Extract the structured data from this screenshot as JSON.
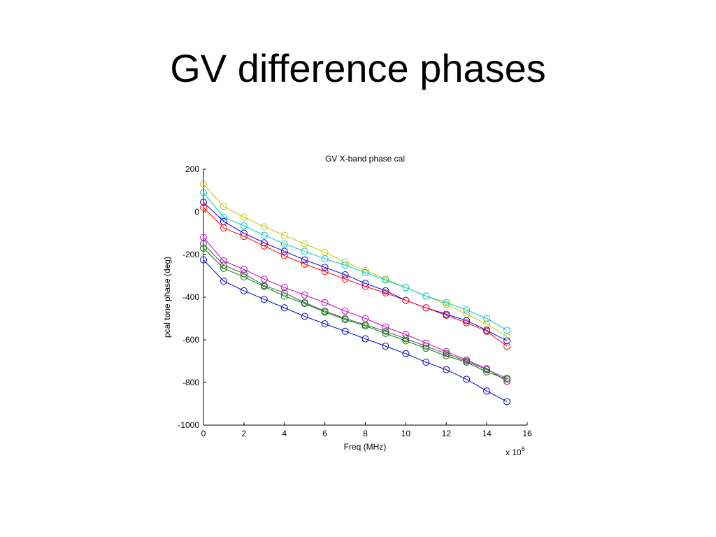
{
  "slide": {
    "title": "GV difference phases"
  },
  "chart_data": {
    "type": "line",
    "title": "GV X-band phase cal",
    "xlabel": "Freq (MHz)",
    "ylabel": "pcal tone phase (deg)",
    "x_exponent_label": "x 10",
    "x_exponent_power": "6",
    "xlim": [
      0,
      16
    ],
    "ylim": [
      -1000,
      200
    ],
    "xticks": [
      "0",
      "2",
      "4",
      "6",
      "8",
      "10",
      "12",
      "14",
      "16"
    ],
    "yticks": [
      "200",
      "0",
      "-200",
      "-400",
      "-600",
      "-800",
      "-1000"
    ],
    "x": [
      0,
      1,
      2,
      3,
      4,
      5,
      6,
      7,
      8,
      9,
      10,
      11,
      12,
      13,
      14,
      15
    ],
    "marker": "circle",
    "series": [
      {
        "color": "#c8c800",
        "values": [
          130,
          25,
          -25,
          -70,
          -110,
          -150,
          -190,
          -235,
          -275,
          -315,
          -355,
          -395,
          -435,
          -480,
          -525,
          -585
        ]
      },
      {
        "color": "#00c8c8",
        "values": [
          90,
          -25,
          -65,
          -110,
          -150,
          -185,
          -220,
          -250,
          -285,
          -320,
          -355,
          -395,
          -425,
          -460,
          -500,
          -555
        ]
      },
      {
        "color": "#0000ff",
        "values": [
          45,
          -45,
          -100,
          -145,
          -185,
          -225,
          -260,
          -295,
          -335,
          -370,
          -415,
          -450,
          -480,
          -510,
          -555,
          -605
        ]
      },
      {
        "color": "#ff0000",
        "values": [
          20,
          -75,
          -115,
          -160,
          -205,
          -245,
          -280,
          -315,
          -350,
          -380,
          -415,
          -450,
          -485,
          -520,
          -560,
          -630
        ]
      },
      {
        "color": "#c800c8",
        "values": [
          -120,
          -230,
          -270,
          -315,
          -355,
          -390,
          -425,
          -465,
          -500,
          -540,
          -575,
          -615,
          -655,
          -695,
          -735,
          -795
        ]
      },
      {
        "color": "#505050",
        "values": [
          -150,
          -250,
          -290,
          -345,
          -380,
          -425,
          -465,
          -500,
          -530,
          -560,
          -595,
          -630,
          -665,
          -700,
          -740,
          -780
        ]
      },
      {
        "color": "#008000",
        "values": [
          -170,
          -265,
          -305,
          -350,
          -395,
          -430,
          -470,
          -505,
          -535,
          -570,
          -605,
          -640,
          -675,
          -705,
          -750,
          -785
        ]
      },
      {
        "color": "#0000c8",
        "values": [
          -225,
          -325,
          -370,
          -410,
          -450,
          -490,
          -525,
          -560,
          -595,
          -630,
          -665,
          -705,
          -740,
          -785,
          -840,
          -890
        ]
      }
    ]
  }
}
